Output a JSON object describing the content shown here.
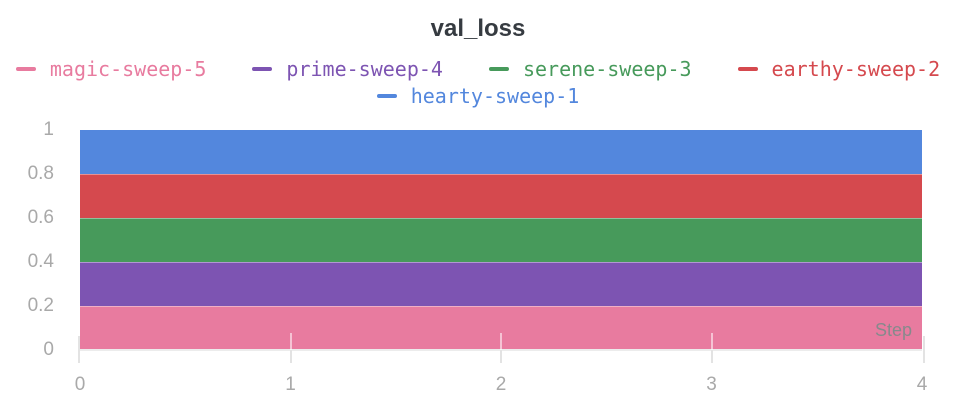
{
  "title": "val_loss",
  "xlabel": "Step",
  "chart_data": {
    "type": "area",
    "title": "val_loss",
    "x": [
      0,
      1,
      2,
      3,
      4
    ],
    "xlabel": "Step",
    "xlim": [
      0,
      4
    ],
    "ylim": [
      0,
      1
    ],
    "x_tick_labels": [
      "0",
      "1",
      "2",
      "3",
      "4"
    ],
    "y_tick_labels": [
      "0",
      "0.2",
      "0.4",
      "0.6",
      "0.8",
      "1"
    ],
    "grid": false,
    "legend_position": "top",
    "series": [
      {
        "name": "magic-sweep-5",
        "color": "#E87B9F",
        "values": [
          0.2,
          0.2,
          0.2,
          0.2,
          0.2
        ],
        "fill_from": 0.0
      },
      {
        "name": "prime-sweep-4",
        "color": "#7D54B2",
        "values": [
          0.4,
          0.4,
          0.4,
          0.4,
          0.4
        ],
        "fill_from": 0.2
      },
      {
        "name": "serene-sweep-3",
        "color": "#479A5B",
        "values": [
          0.6,
          0.6,
          0.6,
          0.6,
          0.6
        ],
        "fill_from": 0.4
      },
      {
        "name": "earthy-sweep-2",
        "color": "#D5494E",
        "values": [
          0.8,
          0.8,
          0.8,
          0.8,
          0.8
        ],
        "fill_from": 0.6
      },
      {
        "name": "hearty-sweep-1",
        "color": "#5387DD",
        "values": [
          1.0,
          1.0,
          1.0,
          1.0,
          1.0
        ],
        "fill_from": 0.8
      }
    ],
    "legend_rows": [
      [
        "magic-sweep-5",
        "prime-sweep-4",
        "serene-sweep-3",
        "earthy-sweep-2"
      ],
      [
        "hearty-sweep-1"
      ]
    ]
  },
  "colors": {
    "title_text": "#363b41",
    "tick_text": "#a9a9a9",
    "step_text": "#87898c",
    "axis_line": "#ececec"
  }
}
